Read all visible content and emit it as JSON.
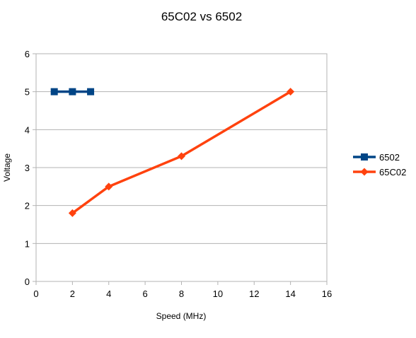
{
  "chart_data": {
    "type": "line",
    "title": "65C02 vs 6502",
    "xlabel": "Speed (MHz)",
    "ylabel": "Voltage",
    "xlim": [
      0,
      16
    ],
    "ylim": [
      0,
      6
    ],
    "xticks": [
      0,
      2,
      4,
      6,
      8,
      10,
      12,
      14,
      16
    ],
    "yticks": [
      0,
      1,
      2,
      3,
      4,
      5,
      6
    ],
    "grid": "horizontal",
    "legend_position": "right",
    "series": [
      {
        "name": "6502",
        "color": "#004586",
        "marker": "square",
        "points": [
          [
            1,
            5
          ],
          [
            2,
            5
          ],
          [
            3,
            5
          ]
        ]
      },
      {
        "name": "65C02",
        "color": "#ff420e",
        "marker": "diamond",
        "points": [
          [
            2,
            1.8
          ],
          [
            4,
            2.5
          ],
          [
            8,
            3.3
          ],
          [
            14,
            5
          ]
        ]
      }
    ]
  }
}
